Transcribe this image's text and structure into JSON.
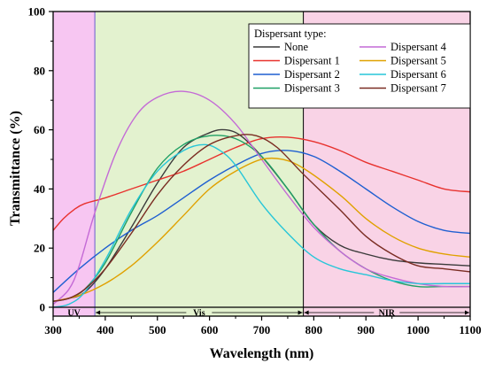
{
  "chart_data": {
    "type": "line",
    "title": "",
    "xlabel": "Wavelength (nm)",
    "ylabel": "Transmittance (%)",
    "xlim": [
      300,
      1100
    ],
    "ylim": [
      -3,
      100
    ],
    "xticks": [
      300,
      400,
      500,
      600,
      700,
      800,
      900,
      1000,
      1100
    ],
    "yticks": [
      0,
      20,
      40,
      60,
      80,
      100
    ],
    "grid": false,
    "legend_title": "Dispersant type:",
    "legend_position": "top-right",
    "regions": [
      {
        "label": "UV",
        "from": 300,
        "to": 380,
        "color": "#f7c6f2"
      },
      {
        "label": "Vis",
        "from": 380,
        "to": 780,
        "color": "#e3f2cf"
      },
      {
        "label": "NIR",
        "from": 780,
        "to": 1100,
        "color": "#f9d3e6"
      }
    ],
    "region_boundary_color": "#6a5acd",
    "series": [
      {
        "name": "None",
        "color": "#3a3a3a",
        "x": [
          300,
          330,
          360,
          400,
          450,
          500,
          550,
          600,
          630,
          660,
          700,
          750,
          800,
          850,
          900,
          950,
          1000,
          1050,
          1100
        ],
        "y": [
          2,
          3,
          5,
          13,
          27,
          42,
          54,
          59,
          60,
          58,
          51,
          40,
          28,
          21,
          18,
          16,
          15,
          14.5,
          14
        ]
      },
      {
        "name": "Dispersant 1",
        "color": "#e8322e",
        "x": [
          300,
          320,
          340,
          360,
          400,
          450,
          500,
          550,
          600,
          650,
          700,
          750,
          800,
          850,
          900,
          950,
          1000,
          1050,
          1100
        ],
        "y": [
          26,
          30,
          33,
          35,
          37,
          40,
          43,
          46,
          50,
          54,
          57,
          57.5,
          56,
          53,
          49,
          46,
          43,
          40,
          39
        ]
      },
      {
        "name": "Dispersant 2",
        "color": "#1f5fd1",
        "x": [
          300,
          350,
          400,
          450,
          500,
          550,
          600,
          650,
          700,
          750,
          800,
          850,
          900,
          950,
          1000,
          1050,
          1100
        ],
        "y": [
          5,
          13,
          20,
          26,
          31,
          37,
          43,
          48,
          52,
          53,
          51,
          46,
          40,
          34,
          29,
          26,
          25
        ]
      },
      {
        "name": "Dispersant 3",
        "color": "#1fa065",
        "x": [
          300,
          330,
          360,
          400,
          450,
          500,
          550,
          600,
          650,
          700,
          750,
          800,
          850,
          900,
          950,
          1000,
          1050,
          1100
        ],
        "y": [
          2,
          3,
          6,
          15,
          32,
          47,
          55,
          58,
          57,
          51,
          40,
          28,
          19,
          13,
          9,
          7,
          7,
          7
        ]
      },
      {
        "name": "Dispersant 4",
        "color": "#c46ad6",
        "x": [
          300,
          330,
          350,
          380,
          420,
          460,
          500,
          550,
          600,
          650,
          700,
          750,
          800,
          850,
          900,
          950,
          1000,
          1050,
          1100
        ],
        "y": [
          1,
          6,
          14,
          32,
          52,
          65,
          71,
          73,
          70,
          62,
          50,
          38,
          27,
          19,
          13,
          10,
          8,
          7,
          7
        ]
      },
      {
        "name": "Dispersant 5",
        "color": "#e0a100",
        "x": [
          300,
          350,
          400,
          450,
          500,
          550,
          600,
          650,
          700,
          740,
          780,
          850,
          900,
          950,
          1000,
          1050,
          1100
        ],
        "y": [
          2,
          4,
          8,
          14,
          22,
          31,
          40,
          46,
          50,
          50,
          47,
          38,
          30,
          24,
          20,
          18,
          17
        ]
      },
      {
        "name": "Dispersant 6",
        "color": "#27c6d8",
        "x": [
          300,
          330,
          360,
          400,
          450,
          500,
          550,
          590,
          620,
          650,
          700,
          750,
          800,
          850,
          900,
          950,
          1000,
          1050,
          1100
        ],
        "y": [
          0,
          1,
          5,
          16,
          33,
          46,
          53,
          55,
          53,
          48,
          35,
          25,
          17,
          13,
          11,
          9,
          8,
          8,
          8
        ]
      },
      {
        "name": "Dispersant 7",
        "color": "#7a2c22",
        "x": [
          300,
          330,
          360,
          400,
          450,
          500,
          550,
          600,
          650,
          690,
          730,
          780,
          850,
          900,
          950,
          1000,
          1050,
          1100
        ],
        "y": [
          2,
          3,
          6,
          13,
          25,
          38,
          48,
          55,
          58,
          58,
          54,
          45,
          33,
          24,
          18,
          14,
          13,
          12
        ]
      }
    ]
  }
}
